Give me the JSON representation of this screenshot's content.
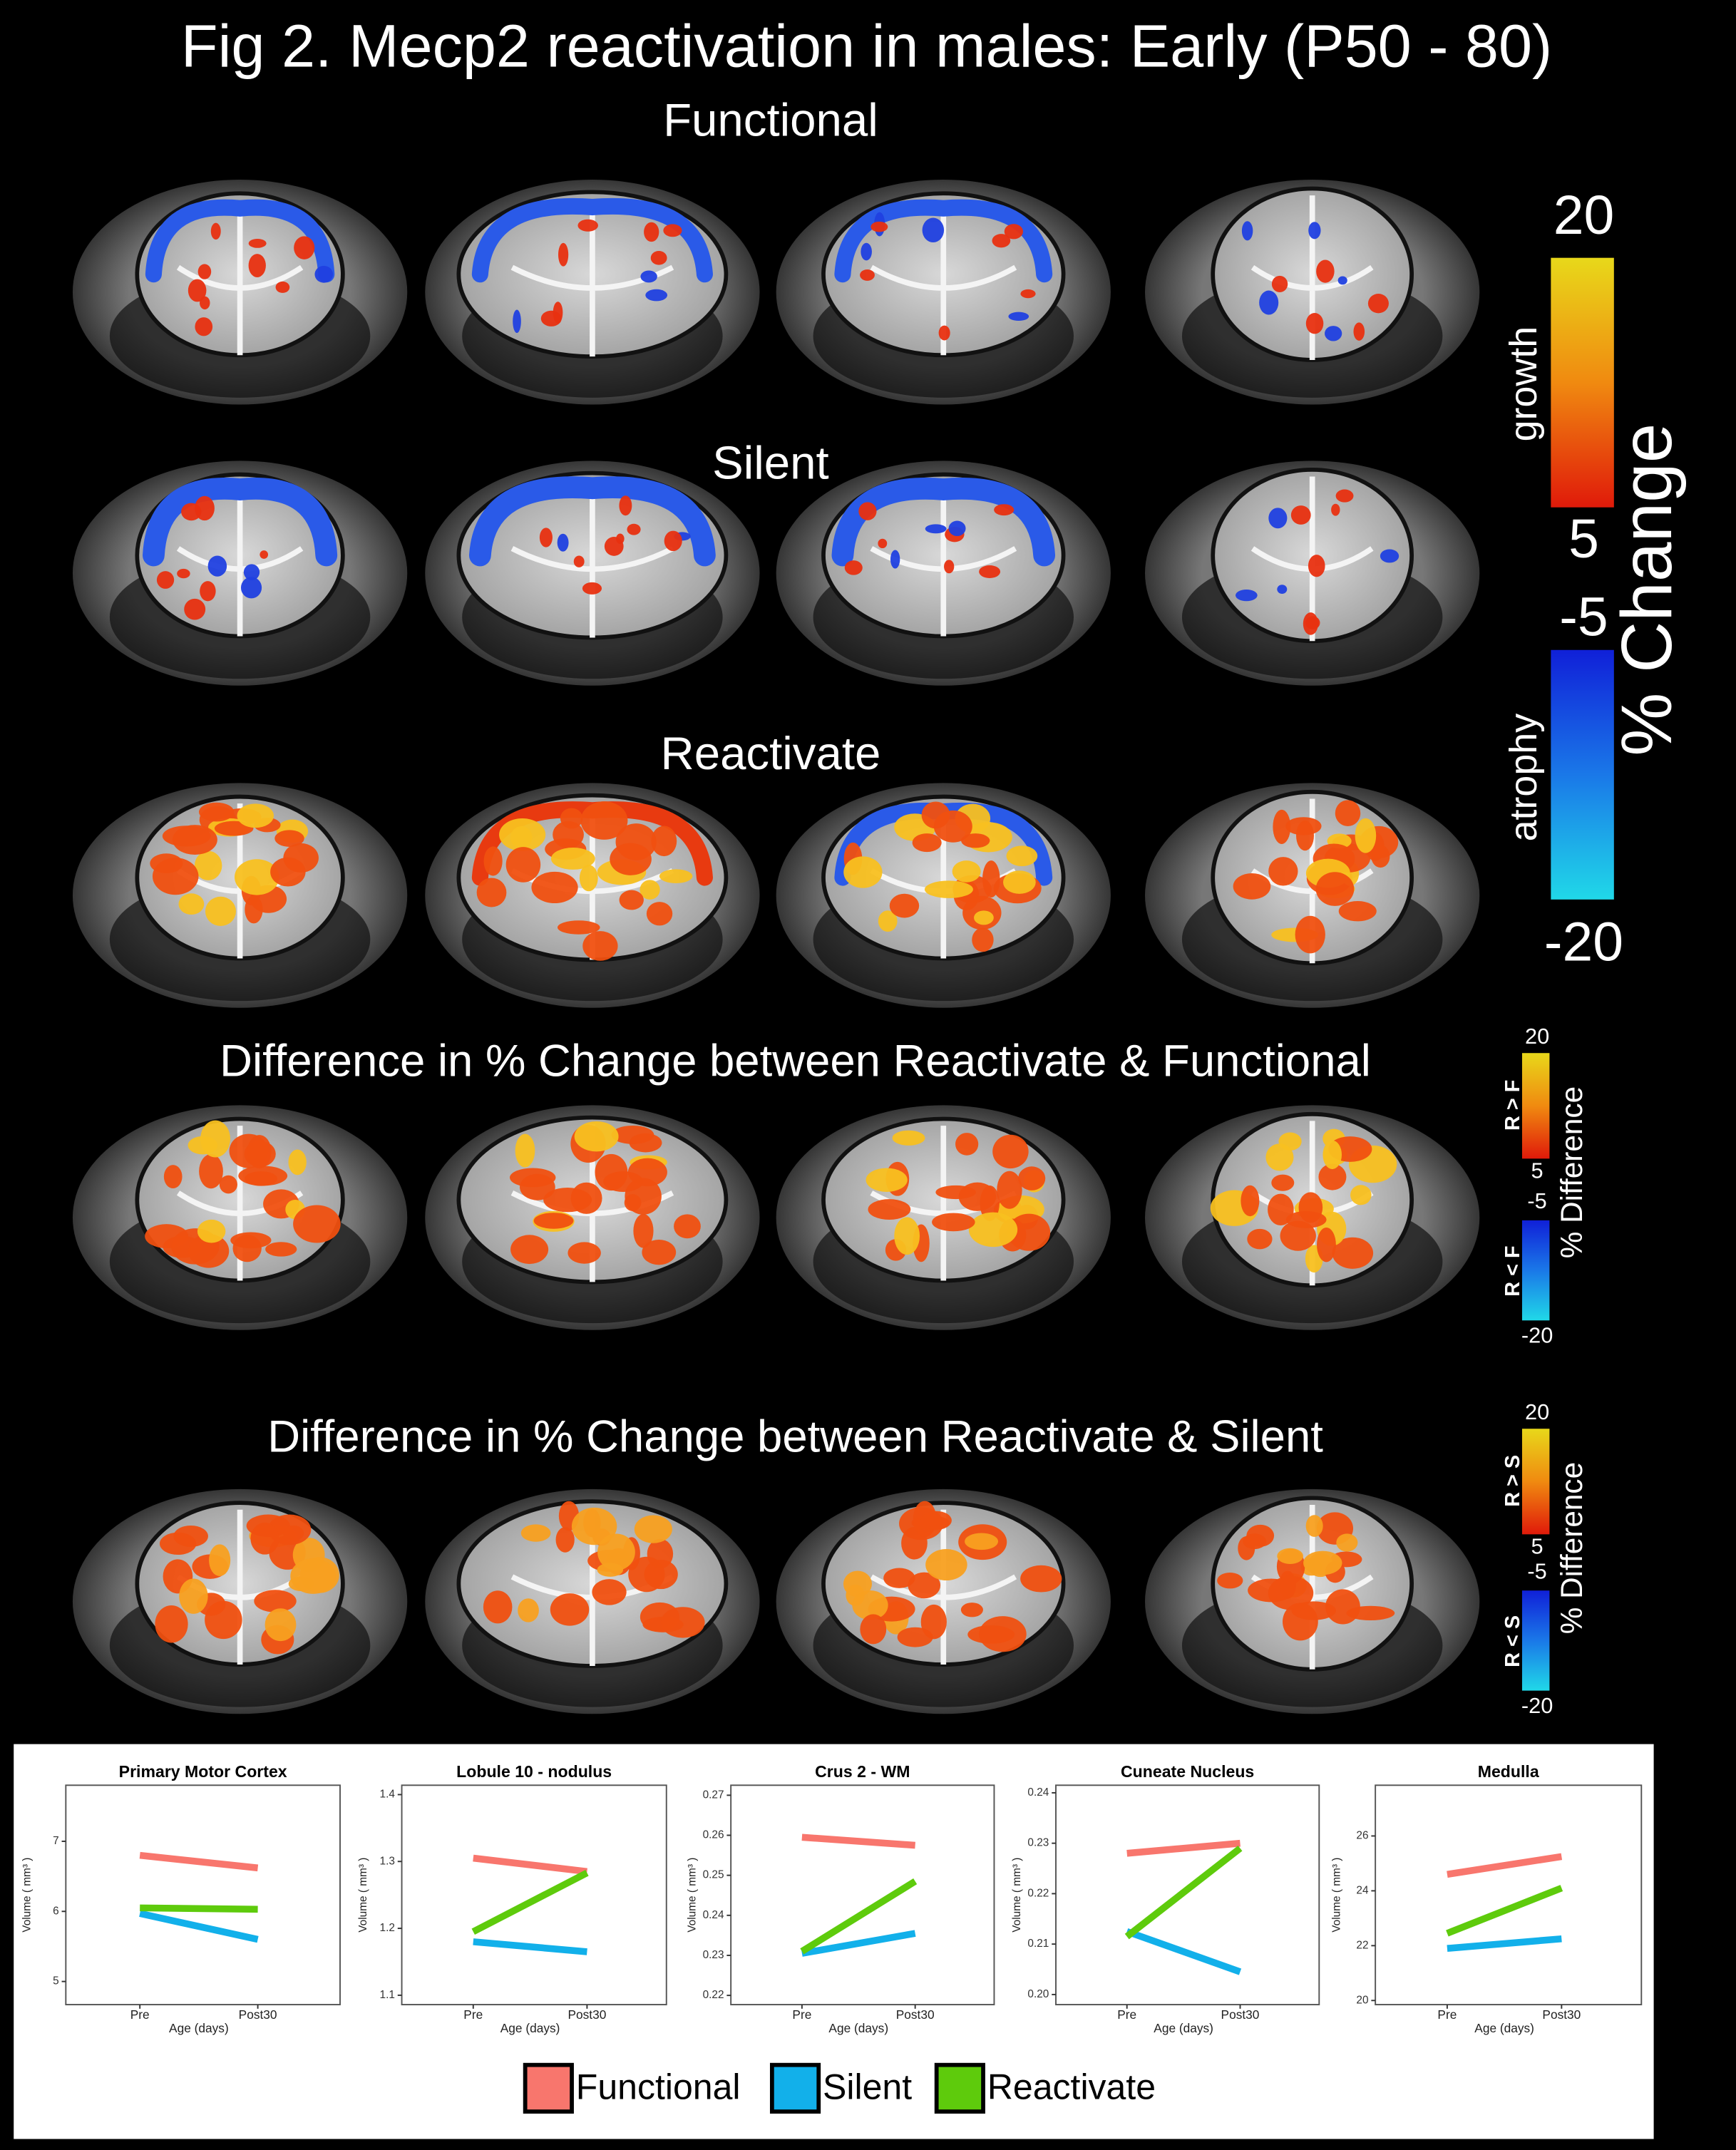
{
  "title": "Fig 2. Mecp2 reactivation in males: Early (P50 - 80)",
  "rows": [
    "Functional",
    "Silent",
    "Reactivate",
    "Difference in % Change between Reactivate & Functional",
    "Difference in % Change between Reactivate & Silent"
  ],
  "colorbar": {
    "max": 20,
    "growth_min": 5,
    "atrophy_max": -5,
    "min": -20,
    "growth": "growth",
    "atrophy": "atrophy",
    "label": "% Change"
  },
  "difference_colorbars": [
    {
      "max": 20,
      "upper": "R > F",
      "upper_min": 5,
      "lower_max": -5,
      "lower": "R < F",
      "min": -20,
      "label": "% Difference"
    },
    {
      "max": 20,
      "upper": "R > S",
      "upper_min": 5,
      "lower_max": -5,
      "lower": "R < S",
      "min": -20,
      "label": "% Difference"
    }
  ],
  "legend": [
    {
      "name": "Functional",
      "color": "#f8766d"
    },
    {
      "name": "Silent",
      "color": "#12b0ea"
    },
    {
      "name": "Reactivate",
      "color": "#5ecb0c"
    }
  ],
  "chart_data": [
    {
      "type": "line",
      "title": "Primary Motor Cortex",
      "x_label": "Age (days)",
      "y_label": "Volume ( mm³ )",
      "categories": [
        "Pre",
        "Post30"
      ],
      "ylim": [
        4.67,
        7.8
      ],
      "yticks": [
        5,
        6,
        7
      ],
      "series": [
        {
          "values": [
            6.8,
            6.62
          ]
        },
        {
          "values": [
            5.97,
            5.6
          ]
        },
        {
          "values": [
            6.05,
            6.03
          ]
        }
      ]
    },
    {
      "type": "line",
      "title": "Lobule 10 - nodulus",
      "x_label": "Age (days)",
      "y_label": "Volume ( mm³ )",
      "categories": [
        "Pre",
        "Post30"
      ],
      "ylim": [
        1.086,
        1.414
      ],
      "yticks": [
        1.1,
        1.2,
        1.3,
        1.4
      ],
      "series": [
        {
          "values": [
            1.305,
            1.285
          ]
        },
        {
          "values": [
            1.18,
            1.165
          ]
        },
        {
          "values": [
            1.195,
            1.283
          ]
        }
      ]
    },
    {
      "type": "line",
      "title": "Crus 2 - WM",
      "x_label": "Age (days)",
      "y_label": "Volume ( mm³ )",
      "categories": [
        "Pre",
        "Post30"
      ],
      "ylim": [
        0.2177,
        0.2725
      ],
      "yticks": [
        0.22,
        0.23,
        0.24,
        0.25,
        0.26,
        0.27
      ],
      "series": [
        {
          "values": [
            0.2595,
            0.2575
          ]
        },
        {
          "values": [
            0.2305,
            0.2355
          ]
        },
        {
          "values": [
            0.231,
            0.2485
          ]
        }
      ]
    },
    {
      "type": "line",
      "title": "Cuneate Nucleus",
      "x_label": "Age (days)",
      "y_label": "Volume ( mm³ )",
      "categories": [
        "Pre",
        "Post30"
      ],
      "ylim": [
        0.198,
        0.2415
      ],
      "yticks": [
        {
          "value": 0.2,
          "label": "0.20"
        },
        0.21,
        0.22,
        0.23,
        0.24
      ],
      "series": [
        {
          "values": [
            0.228,
            0.23
          ]
        },
        {
          "values": [
            0.2125,
            0.2045
          ]
        },
        {
          "values": [
            0.2115,
            0.229
          ]
        }
      ]
    },
    {
      "type": "line",
      "title": "Medulla",
      "x_label": "Age (days)",
      "y_label": "Volume ( mm³ )",
      "categories": [
        "Pre",
        "Post30"
      ],
      "ylim": [
        19.85,
        27.85
      ],
      "yticks": [
        20,
        22,
        24,
        26
      ],
      "series": [
        {
          "values": [
            24.6,
            25.25
          ]
        },
        {
          "values": [
            21.9,
            22.25
          ]
        },
        {
          "values": [
            22.45,
            24.1
          ]
        }
      ]
    }
  ]
}
